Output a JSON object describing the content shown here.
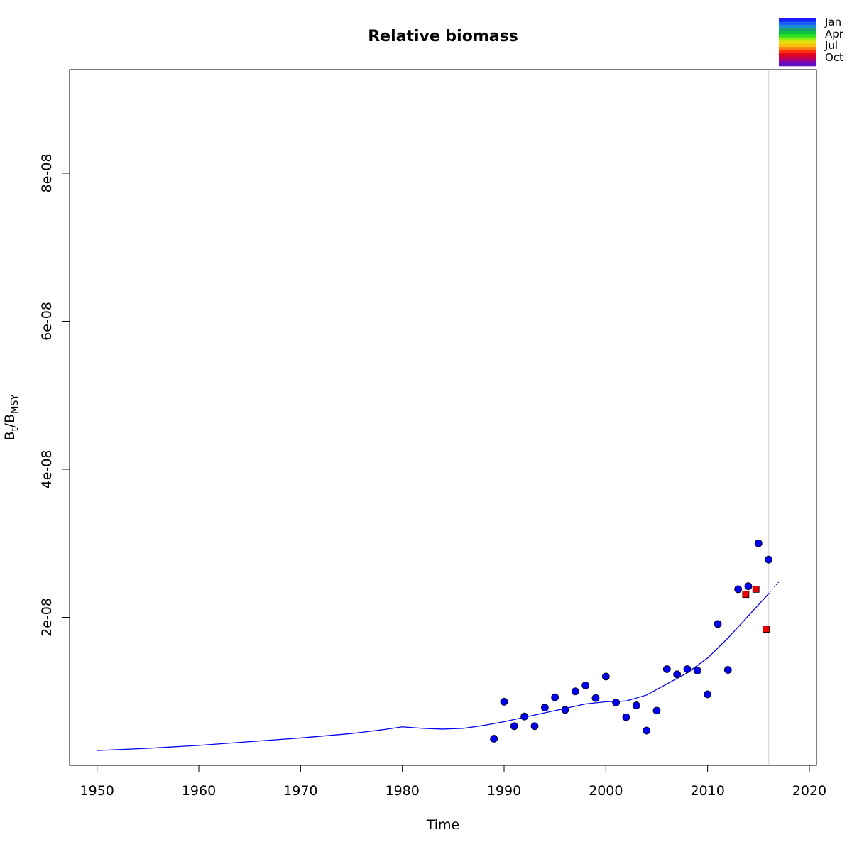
{
  "chart_data": {
    "type": "line",
    "title": "Relative biomass",
    "xlabel": "Time",
    "ylabel": {
      "base": "B",
      "sub1": "t",
      "sep": "/",
      "base2": "B",
      "sub2": "MSY"
    },
    "xlim": [
      1947.3,
      2020.7
    ],
    "ylim": [
      -0.0,
      9.4e-08
    ],
    "x_ticks": [
      1950,
      1960,
      1970,
      1980,
      1990,
      2000,
      2010,
      2020
    ],
    "x_tick_labels": [
      "1950",
      "1960",
      "1970",
      "1980",
      "1990",
      "2000",
      "2010",
      "2020"
    ],
    "y_ticks": [
      2e-08,
      4e-08,
      6e-08,
      8e-08
    ],
    "y_tick_labels": [
      "2e-08",
      "4e-08",
      "6e-08",
      "8e-08"
    ],
    "grid": false,
    "vline_x": 2016,
    "line_series": {
      "color": "#0000ee",
      "points": [
        [
          1950,
          2e-09
        ],
        [
          1955,
          2.3e-09
        ],
        [
          1960,
          2.7e-09
        ],
        [
          1965,
          3.2e-09
        ],
        [
          1970,
          3.7e-09
        ],
        [
          1975,
          4.3e-09
        ],
        [
          1978,
          4.8e-09
        ],
        [
          1980,
          5.2e-09
        ],
        [
          1982,
          5e-09
        ],
        [
          1984,
          4.9e-09
        ],
        [
          1986,
          5e-09
        ],
        [
          1988,
          5.4e-09
        ],
        [
          1990,
          5.9e-09
        ],
        [
          1992,
          6.5e-09
        ],
        [
          1994,
          7.1e-09
        ],
        [
          1996,
          7.7e-09
        ],
        [
          1998,
          8.3e-09
        ],
        [
          2000,
          8.6e-09
        ],
        [
          2002,
          8.7e-09
        ],
        [
          2004,
          9.5e-09
        ],
        [
          2006,
          1.1e-08
        ],
        [
          2008,
          1.25e-08
        ],
        [
          2010,
          1.45e-08
        ],
        [
          2012,
          1.72e-08
        ],
        [
          2014,
          2.02e-08
        ],
        [
          2016,
          2.32e-08
        ]
      ],
      "forecast": [
        [
          2016,
          2.32e-08
        ],
        [
          2017,
          2.48e-08
        ]
      ]
    },
    "series": [
      {
        "marker": "circle",
        "color": "#0000ee",
        "points": [
          [
            1989,
            3.6e-09
          ],
          [
            1990,
            8.6e-09
          ],
          [
            1991,
            5.3e-09
          ],
          [
            1992,
            6.6e-09
          ],
          [
            1993,
            5.3e-09
          ],
          [
            1994,
            7.8e-09
          ],
          [
            1995,
            9.2e-09
          ],
          [
            1996,
            7.5e-09
          ],
          [
            1997,
            1e-08
          ],
          [
            1998,
            1.08e-08
          ],
          [
            1999,
            9.1e-09
          ],
          [
            2000,
            1.2e-08
          ],
          [
            2001,
            8.5e-09
          ],
          [
            2002,
            6.5e-09
          ],
          [
            2003,
            8.1e-09
          ],
          [
            2004,
            4.7e-09
          ],
          [
            2005,
            7.4e-09
          ],
          [
            2006,
            1.3e-08
          ],
          [
            2007,
            1.23e-08
          ],
          [
            2008,
            1.3e-08
          ],
          [
            2009,
            1.28e-08
          ],
          [
            2010,
            9.6e-09
          ],
          [
            2011,
            1.91e-08
          ],
          [
            2012,
            1.29e-08
          ],
          [
            2013,
            2.38e-08
          ],
          [
            2014,
            2.42e-08
          ],
          [
            2015,
            3e-08
          ],
          [
            2016,
            2.78e-08
          ]
        ]
      },
      {
        "marker": "square",
        "color": "#ee0000",
        "points": [
          [
            2013.75,
            2.31e-08
          ],
          [
            2014.75,
            2.38e-08
          ],
          [
            2015.75,
            1.84e-08
          ]
        ]
      }
    ],
    "legend": {
      "placement": "top-right",
      "labels": [
        "Jan",
        "Apr",
        "Jul",
        "Oct"
      ],
      "colors": [
        "#1a1aff",
        "#1a5fff",
        "#1a8fd0",
        "#1aa070",
        "#10c040",
        "#30e020",
        "#90ee10",
        "#e0e010",
        "#ffc010",
        "#ff8010",
        "#ff3010",
        "#e00020",
        "#c00050",
        "#9000a0",
        "#6010c0"
      ]
    }
  }
}
